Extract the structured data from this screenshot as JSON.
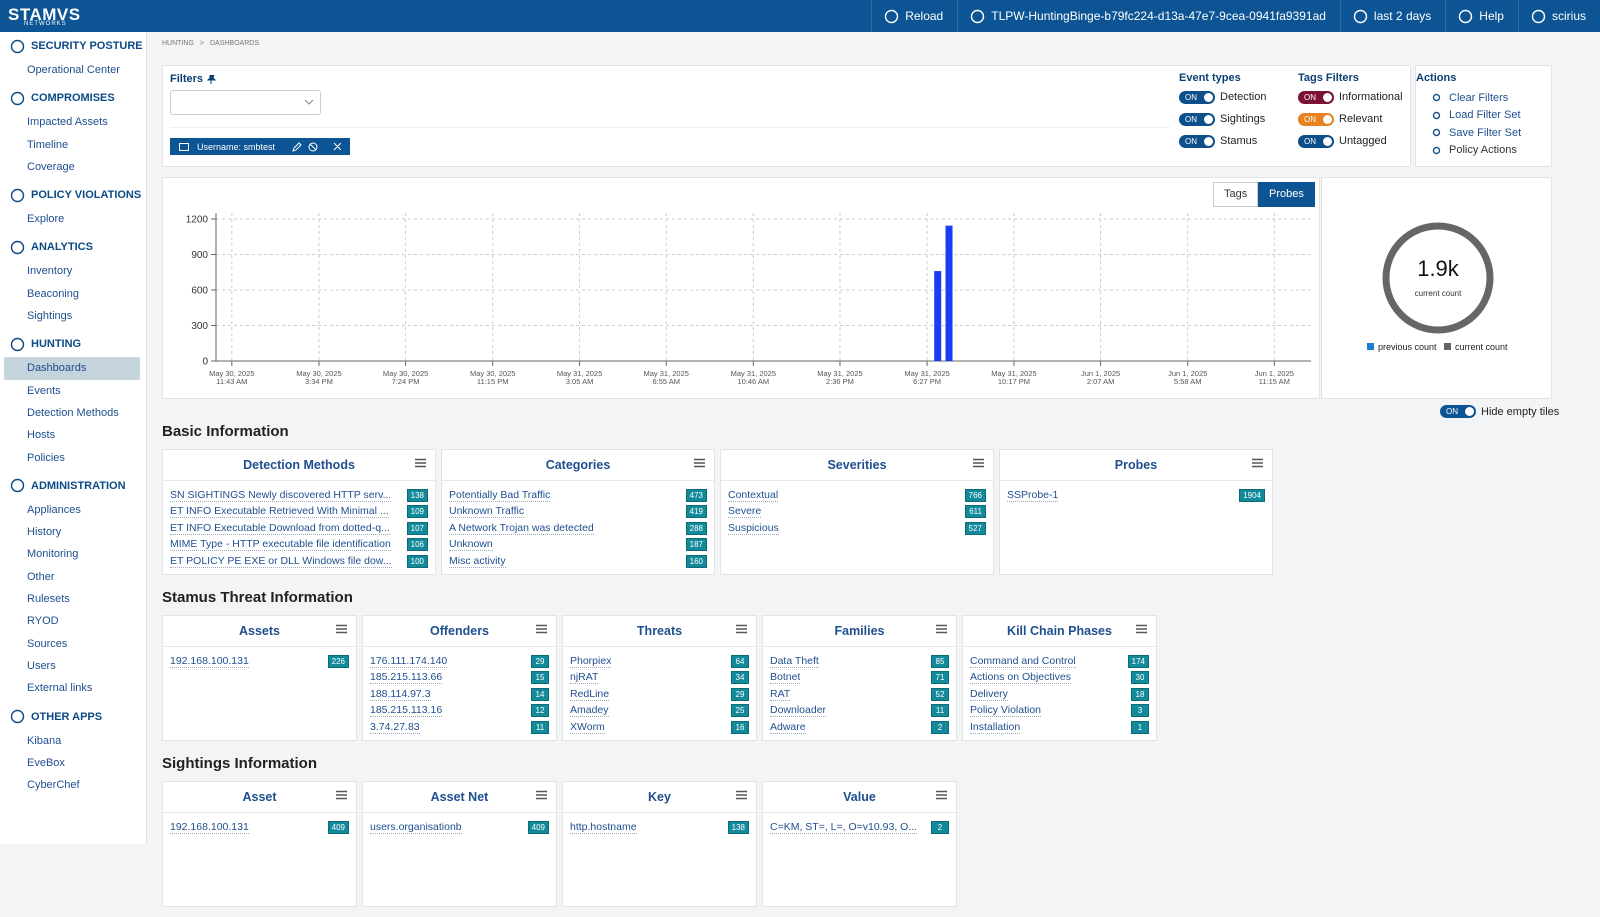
{
  "topbar": {
    "brand": "STAMVS",
    "brand_sub": "NETWORKS",
    "items": [
      "Reload",
      "TLPW-HuntingBinge-b79fc224-d13a-47e7-9cea-0941fa9391ad",
      "last 2 days",
      "Help",
      "scirius"
    ]
  },
  "sidebar": {
    "active": "Dashboards",
    "sections": [
      {
        "title": "SECURITY POSTURE",
        "links": [
          "Operational Center"
        ]
      },
      {
        "title": "COMPROMISES",
        "links": [
          "Impacted Assets",
          "Timeline",
          "Coverage"
        ]
      },
      {
        "title": "POLICY VIOLATIONS",
        "links": [
          "Explore"
        ]
      },
      {
        "title": "ANALYTICS",
        "links": [
          "Inventory",
          "Beaconing",
          "Sightings"
        ]
      },
      {
        "title": "HUNTING",
        "links": [
          "Dashboards",
          "Events",
          "Detection Methods",
          "Hosts",
          "Policies"
        ]
      },
      {
        "title": "ADMINISTRATION",
        "links": [
          "Appliances",
          "History",
          "Monitoring",
          "Other",
          "Rulesets",
          "RYOD",
          "Sources",
          "Users",
          "External links"
        ]
      },
      {
        "title": "OTHER APPS",
        "links": [
          "Kibana",
          "EveBox",
          "CyberChef"
        ]
      }
    ]
  },
  "breadcrumb": [
    "HUNTING",
    ">",
    "DASHBOARDS"
  ],
  "filters": {
    "title": "Filters",
    "chip": "Username: smbtest",
    "event_types": {
      "title": "Event types",
      "items": [
        {
          "state": "ON",
          "label": "Detection",
          "color": "#0d4f8a"
        },
        {
          "state": "ON",
          "label": "Sightings",
          "color": "#0d4f8a"
        },
        {
          "state": "ON",
          "label": "Stamus",
          "color": "#0d4f8a"
        }
      ]
    },
    "tags_filters": {
      "title": "Tags Filters",
      "items": [
        {
          "state": "ON",
          "label": "Informational",
          "color": "#7a1238"
        },
        {
          "state": "ON",
          "label": "Relevant",
          "color": "#e8821e"
        },
        {
          "state": "ON",
          "label": "Untagged",
          "color": "#0d4f8a"
        }
      ]
    },
    "actions": {
      "title": "Actions",
      "items": [
        "Clear Filters",
        "Load Filter Set",
        "Save Filter Set",
        "Policy Actions"
      ]
    }
  },
  "chart_tabs": {
    "items": [
      "Tags",
      "Probes"
    ],
    "active": "Probes"
  },
  "chart_data": {
    "type": "bar",
    "x": [
      31.2,
      31.7
    ],
    "values": [
      760,
      1144
    ],
    "color": "#1a3cf5",
    "xlim": [
      -0.7,
      47.7
    ],
    "xticks": [
      {
        "value": 0,
        "label": "May 30, 2025\n11:43 AM"
      },
      {
        "value": 3.85,
        "label": "May 30, 2025\n3:34 PM"
      },
      {
        "value": 7.68,
        "label": "May 30, 2025\n7:24 PM"
      },
      {
        "value": 11.53,
        "label": "May 30, 2025\n11:15 PM"
      },
      {
        "value": 15.37,
        "label": "May 31, 2025\n3:05 AM"
      },
      {
        "value": 19.2,
        "label": "May 31, 2025\n6:55 AM"
      },
      {
        "value": 23.05,
        "label": "May 31, 2025\n10:46 AM"
      },
      {
        "value": 26.88,
        "label": "May 31, 2025\n2:36 PM"
      },
      {
        "value": 30.73,
        "label": "May 31, 2025\n6:27 PM"
      },
      {
        "value": 34.57,
        "label": "May 31, 2025\n10:17 PM"
      },
      {
        "value": 38.4,
        "label": "Jun 1, 2025\n2:07 AM"
      },
      {
        "value": 42.25,
        "label": "Jun 1, 2025\n5:58 AM"
      },
      {
        "value": 46.08,
        "label": "Jun 1, 2025\n11:15 AM"
      }
    ],
    "ylim": [
      0,
      1200
    ],
    "yticks": [
      0,
      300,
      600,
      900,
      1200
    ],
    "grid": true
  },
  "donut": {
    "value": "1.9k",
    "caption": "current count",
    "legend": [
      {
        "name": "previous count",
        "color": "#1e7fd0"
      },
      {
        "name": "current count",
        "color": "#666666"
      }
    ]
  },
  "hide_empty": {
    "state": "ON",
    "label": "Hide empty tiles"
  },
  "sections": [
    {
      "title": "Basic Information",
      "tiles": [
        {
          "title": "Detection Methods",
          "rows": [
            [
              "SN SIGHTINGS Newly discovered HTTP serv...",
              138
            ],
            [
              "ET INFO Executable Retrieved With Minimal ...",
              109
            ],
            [
              "ET INFO Executable Download from dotted-q...",
              107
            ],
            [
              "MIME Type - HTTP executable file identification",
              106
            ],
            [
              "ET POLICY PE EXE or DLL Windows file dow...",
              100
            ]
          ]
        },
        {
          "title": "Categories",
          "rows": [
            [
              "Potentially Bad Traffic",
              473
            ],
            [
              "Unknown Traffic",
              419
            ],
            [
              "A Network Trojan was detected",
              288
            ],
            [
              "Unknown",
              187
            ],
            [
              "Misc activity",
              160
            ]
          ]
        },
        {
          "title": "Severities",
          "rows": [
            [
              "Contextual",
              766
            ],
            [
              "Severe",
              611
            ],
            [
              "Suspicious",
              527
            ]
          ]
        },
        {
          "title": "Probes",
          "rows": [
            [
              "SSProbe-1",
              1904
            ]
          ]
        }
      ]
    },
    {
      "title": "Stamus Threat Information",
      "tiles": [
        {
          "title": "Assets",
          "rows": [
            [
              "192.168.100.131",
              226
            ]
          ]
        },
        {
          "title": "Offenders",
          "rows": [
            [
              "176.111.174.140",
              29
            ],
            [
              "185.215.113.66",
              15
            ],
            [
              "188.114.97.3",
              14
            ],
            [
              "185.215.113.16",
              12
            ],
            [
              "3.74.27.83",
              11
            ]
          ]
        },
        {
          "title": "Threats",
          "rows": [
            [
              "Phorpiex",
              64
            ],
            [
              "njRAT",
              34
            ],
            [
              "RedLine",
              29
            ],
            [
              "Amadey",
              25
            ],
            [
              "XWorm",
              16
            ]
          ]
        },
        {
          "title": "Families",
          "rows": [
            [
              "Data Theft",
              85
            ],
            [
              "Botnet",
              71
            ],
            [
              "RAT",
              52
            ],
            [
              "Downloader",
              11
            ],
            [
              "Adware",
              2
            ]
          ]
        },
        {
          "title": "Kill Chain Phases",
          "rows": [
            [
              "Command and Control",
              174
            ],
            [
              "Actions on Objectives",
              30
            ],
            [
              "Delivery",
              18
            ],
            [
              "Policy Violation",
              3
            ],
            [
              "Installation",
              1
            ]
          ]
        }
      ]
    },
    {
      "title": "Sightings Information",
      "tiles": [
        {
          "title": "Asset",
          "rows": [
            [
              "192.168.100.131",
              409
            ]
          ]
        },
        {
          "title": "Asset Net",
          "rows": [
            [
              "users.organisationb",
              409
            ]
          ]
        },
        {
          "title": "Key",
          "rows": [
            [
              "http.hostname",
              138
            ]
          ]
        },
        {
          "title": "Value",
          "rows": [
            [
              "C=KM, ST=, L=, O=v10.93, O...",
              2
            ]
          ]
        }
      ]
    }
  ]
}
